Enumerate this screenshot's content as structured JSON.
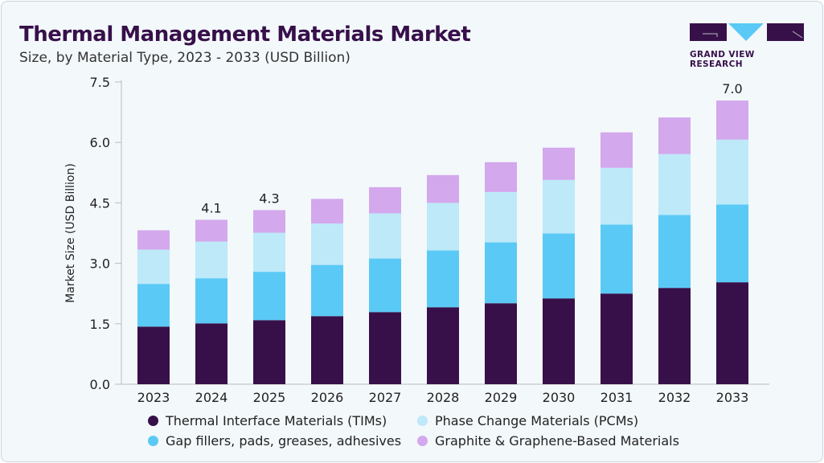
{
  "title": "Thermal Management Materials Market",
  "subtitle": "Size, by  Material Type, 2023 - 2033 (USD Billion)",
  "logo_text": "GRAND VIEW RESEARCH",
  "chart_data": {
    "type": "bar",
    "stacked": true,
    "ylabel": "Market Size (USD Billion)",
    "xlabel": "",
    "ylim": [
      0,
      7.5
    ],
    "yticks": [
      "0.0",
      "1.5",
      "3.0",
      "4.5",
      "6.0",
      "7.5"
    ],
    "categories": [
      "2023",
      "2024",
      "2025",
      "2026",
      "2027",
      "2028",
      "2029",
      "2030",
      "2031",
      "2032",
      "2033"
    ],
    "series": [
      {
        "name": "Thermal Interface Materials (TIMs)",
        "color": "#37104a",
        "values": [
          1.43,
          1.51,
          1.59,
          1.69,
          1.79,
          1.91,
          2.01,
          2.13,
          2.25,
          2.39,
          2.53
        ]
      },
      {
        "name": "Gap fillers, pads, greases, adhesives",
        "color": "#5bc9f5",
        "values": [
          1.06,
          1.12,
          1.2,
          1.27,
          1.33,
          1.41,
          1.51,
          1.61,
          1.71,
          1.81,
          1.93
        ]
      },
      {
        "name": "Phase Change Materials (PCMs)",
        "color": "#bde9f9",
        "values": [
          0.85,
          0.91,
          0.97,
          1.03,
          1.12,
          1.18,
          1.25,
          1.33,
          1.41,
          1.51,
          1.61
        ]
      },
      {
        "name": "Graphite & Graphene-Based Materials",
        "color": "#d3a8ec",
        "values": [
          0.48,
          0.54,
          0.56,
          0.61,
          0.65,
          0.69,
          0.74,
          0.8,
          0.88,
          0.91,
          0.97
        ]
      }
    ],
    "data_labels": {
      "2024": "4.1",
      "2025": "4.3",
      "2033": "7.0"
    },
    "grid": false,
    "legend": "bottom"
  }
}
